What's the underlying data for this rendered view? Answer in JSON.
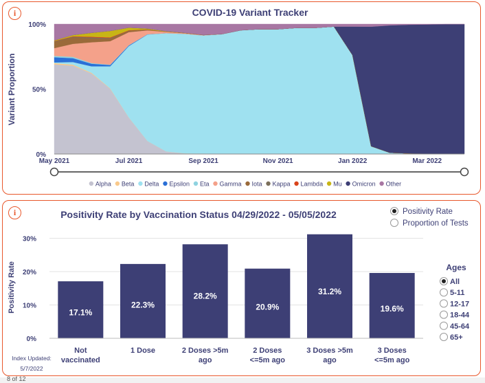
{
  "footer_text": "8 of 12",
  "colors": {
    "border": "#e8562a",
    "bar": "#3d3f75",
    "axis_text": "#3d3f75"
  },
  "chart_data": [
    {
      "type": "area",
      "title": "COVID-19 Variant Tracker",
      "ylabel": "Variant Proportion",
      "xlabel": "",
      "ylim": [
        0,
        100
      ],
      "yticks": [
        "0%",
        "50%",
        "100%"
      ],
      "xticks": [
        "May 2021",
        "Jul 2021",
        "Sep 2021",
        "Nov 2021",
        "Jan 2022",
        "Mar 2022"
      ],
      "legend_position": "bottom",
      "x": [
        0,
        0.5,
        1,
        1.5,
        2,
        2.5,
        3,
        3.5,
        4,
        4.5,
        5,
        5.5,
        6,
        6.5,
        7,
        7.5,
        8,
        8.5,
        9,
        9.5,
        10,
        10.5,
        11
      ],
      "series": [
        {
          "name": "Alpha",
          "color": "#c4c3d0",
          "values": [
            69,
            68,
            62,
            50,
            28,
            10,
            2,
            0.5,
            0.3,
            0.2,
            0.2,
            0.1,
            0.1,
            0.1,
            0.1,
            0.1,
            0.1,
            0,
            0,
            0,
            0,
            0,
            0
          ]
        },
        {
          "name": "Beta",
          "color": "#f9c98b",
          "values": [
            1,
            0.8,
            0.5,
            0.3,
            0.1,
            0,
            0,
            0,
            0,
            0,
            0,
            0,
            0,
            0,
            0,
            0,
            0,
            0,
            0,
            0,
            0,
            0,
            0
          ]
        },
        {
          "name": "Delta",
          "color": "#9fe1f0",
          "values": [
            0.5,
            2,
            5,
            17,
            55,
            82,
            91,
            92,
            91,
            92,
            95,
            96,
            96,
            97,
            97,
            98,
            76,
            6,
            1,
            0.5,
            0.2,
            0.1,
            0.1
          ]
        },
        {
          "name": "Epsilon",
          "color": "#2a6fd6",
          "values": [
            4,
            3,
            2,
            1,
            0.5,
            0.2,
            0,
            0,
            0,
            0,
            0,
            0,
            0,
            0,
            0,
            0,
            0,
            0,
            0,
            0,
            0,
            0,
            0
          ]
        },
        {
          "name": "Eta",
          "color": "#8fd3e0",
          "values": [
            1,
            1,
            0.5,
            0.3,
            0.2,
            0,
            0,
            0,
            0,
            0,
            0,
            0,
            0,
            0,
            0,
            0,
            0,
            0,
            0,
            0,
            0,
            0,
            0
          ]
        },
        {
          "name": "Gamma",
          "color": "#f4a18a",
          "values": [
            6,
            10,
            16,
            18,
            10,
            3,
            1,
            0.5,
            0.3,
            0.2,
            0.1,
            0,
            0,
            0,
            0,
            0,
            0,
            0,
            0,
            0,
            0,
            0,
            0
          ]
        },
        {
          "name": "Iota",
          "color": "#9a6a3a",
          "values": [
            5,
            5,
            3,
            2,
            1,
            0.5,
            0.2,
            0.1,
            0,
            0,
            0,
            0,
            0,
            0,
            0,
            0,
            0,
            0,
            0,
            0,
            0,
            0,
            0
          ]
        },
        {
          "name": "Kappa",
          "color": "#7b6f5b",
          "values": [
            0.3,
            0.5,
            0.8,
            0.5,
            0.2,
            0.1,
            0,
            0,
            0,
            0,
            0,
            0,
            0,
            0,
            0,
            0,
            0,
            0,
            0,
            0,
            0,
            0,
            0
          ]
        },
        {
          "name": "Lambda",
          "color": "#d9441b",
          "values": [
            0.2,
            0.3,
            0.5,
            0.4,
            0.3,
            0.1,
            0,
            0,
            0,
            0,
            0,
            0,
            0,
            0,
            0,
            0,
            0,
            0,
            0,
            0,
            0,
            0,
            0
          ]
        },
        {
          "name": "Mu",
          "color": "#c8b516",
          "values": [
            0.5,
            1,
            3,
            5,
            2,
            0.7,
            0.3,
            0.2,
            0.1,
            0,
            0,
            0,
            0,
            0,
            0,
            0,
            0,
            0,
            0,
            0,
            0,
            0,
            0
          ]
        },
        {
          "name": "Omicron",
          "color": "#3d3f75",
          "values": [
            0,
            0,
            0,
            0,
            0,
            0,
            0,
            0,
            0,
            0,
            0,
            0,
            0,
            0,
            0,
            0,
            22,
            92,
            98,
            99,
            99.5,
            99.8,
            99.8
          ]
        },
        {
          "name": "Other",
          "color": "#a877a3",
          "values": [
            12.5,
            8.4,
            6.7,
            5.2,
            2.7,
            3.4,
            5.5,
            6.7,
            8.3,
            7.6,
            4.7,
            3.9,
            3.9,
            2.9,
            2.9,
            1.9,
            1.9,
            2,
            1,
            0.5,
            0.3,
            0.1,
            0.1
          ]
        }
      ]
    },
    {
      "type": "bar",
      "title": "Positivity Rate by Vaccination Status 04/29/2022 - 05/05/2022",
      "ylabel": "Positivity Rate",
      "xlabel": "",
      "ylim": [
        0,
        33
      ],
      "yticks": [
        "0%",
        "10%",
        "20%",
        "30%"
      ],
      "categories": [
        [
          "Not",
          "vaccinated"
        ],
        [
          "1 Dose"
        ],
        [
          "2 Doses >5m",
          "ago"
        ],
        [
          "2 Doses",
          "<=5m ago"
        ],
        [
          "3 Doses >5m",
          "ago"
        ],
        [
          "3 Doses",
          "<=5m ago"
        ]
      ],
      "values": [
        17.1,
        22.3,
        28.2,
        20.9,
        31.2,
        19.6
      ],
      "data_labels": [
        "17.1%",
        "22.3%",
        "28.2%",
        "20.9%",
        "31.2%",
        "19.6%"
      ]
    }
  ],
  "metric_options": [
    {
      "label": "Positivity Rate",
      "selected": true
    },
    {
      "label": "Proportion of Tests",
      "selected": false
    }
  ],
  "ages": {
    "title": "Ages",
    "options": [
      {
        "label": "All",
        "selected": true
      },
      {
        "label": "5-11",
        "selected": false
      },
      {
        "label": "12-17",
        "selected": false
      },
      {
        "label": "18-44",
        "selected": false
      },
      {
        "label": "45-64",
        "selected": false
      },
      {
        "label": "65+",
        "selected": false
      }
    ]
  },
  "index_updated": {
    "label": "Index Updated:",
    "date": "5/7/2022"
  }
}
